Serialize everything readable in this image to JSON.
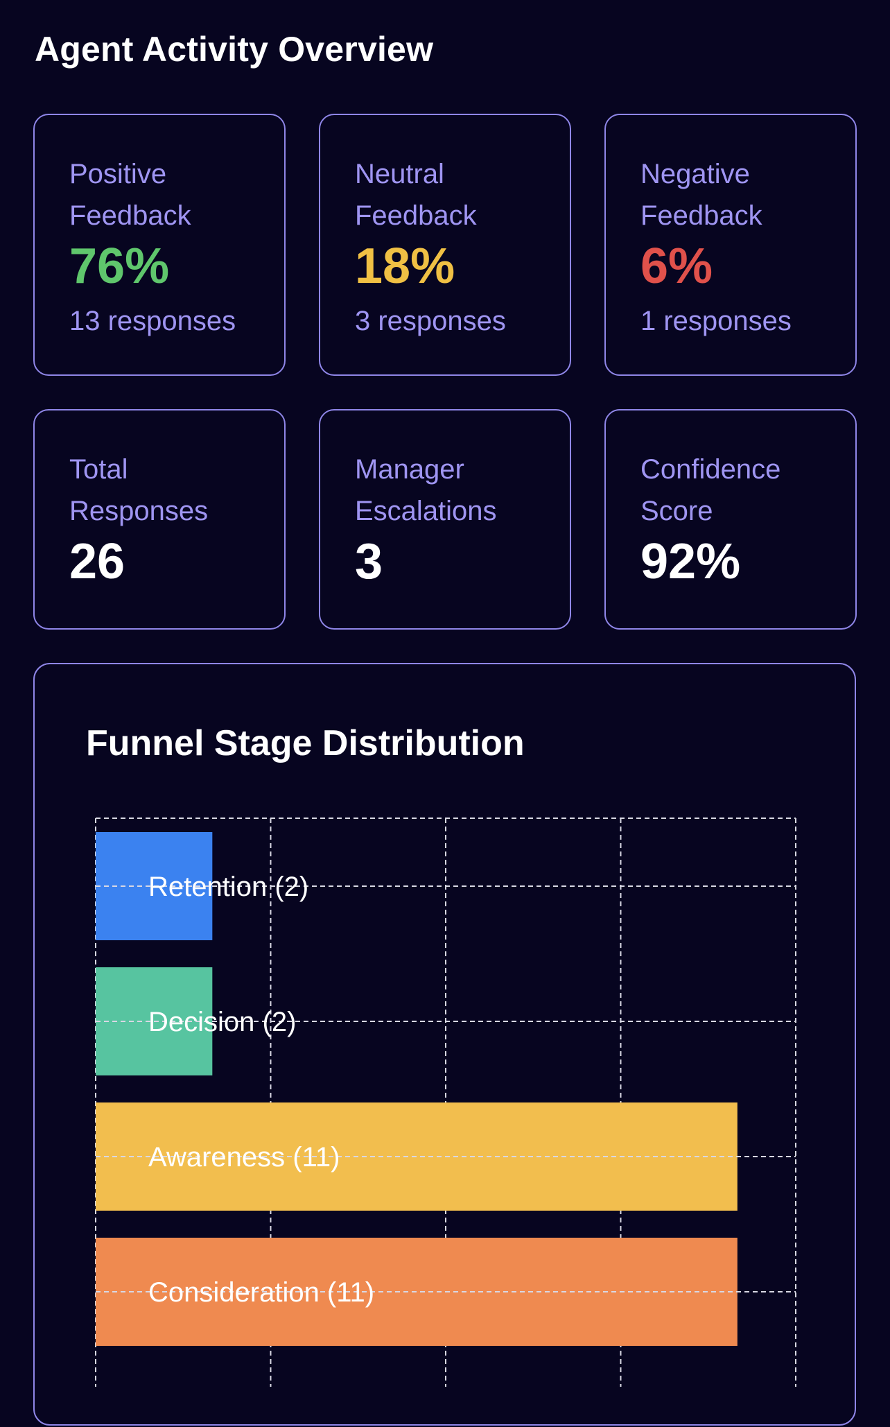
{
  "page": {
    "title": "Agent Activity Overview"
  },
  "feedback_cards": [
    {
      "label": "Positive Feedback",
      "value": "76%",
      "sub": "13 responses",
      "color": "#5fc66c"
    },
    {
      "label": "Neutral Feedback",
      "value": "18%",
      "sub": "3 responses",
      "color": "#f0c044"
    },
    {
      "label": "Negative Feedback",
      "value": "6%",
      "sub": "1 responses",
      "color": "#e0514b"
    }
  ],
  "metric_cards": [
    {
      "label": "Total Responses",
      "value": "26"
    },
    {
      "label": "Manager Escalations",
      "value": "3"
    },
    {
      "label": "Confidence Score",
      "value": "92%"
    }
  ],
  "chart_data": {
    "type": "bar",
    "orientation": "horizontal",
    "title": "Funnel Stage Distribution",
    "categories": [
      "Retention",
      "Decision",
      "Awareness",
      "Consideration"
    ],
    "values": [
      2,
      2,
      11,
      11
    ],
    "bar_labels": [
      "Retention (2)",
      "Decision (2)",
      "Awareness (11)",
      "Consideration (11)"
    ],
    "colors": [
      "#3b82f0",
      "#57c4a0",
      "#f2be4e",
      "#ef8a50"
    ],
    "xlim": [
      0,
      12
    ],
    "grid": true,
    "grid_style": "dashed"
  }
}
